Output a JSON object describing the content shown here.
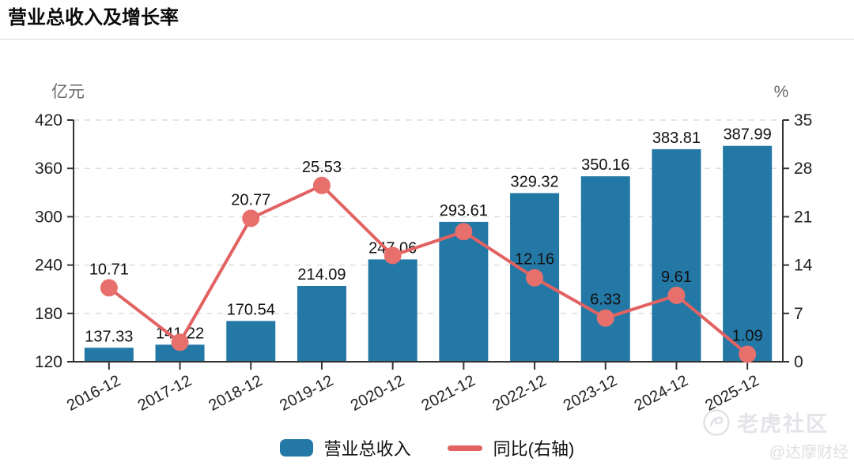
{
  "header": {
    "title": "营业总收入及增长率"
  },
  "chart_data": {
    "type": "bar",
    "title": "营业总收入及增长率",
    "categories": [
      "2016-12",
      "2017-12",
      "2018-12",
      "2019-12",
      "2020-12",
      "2021-12",
      "2022-12",
      "2023-12",
      "2024-12",
      "2025-12"
    ],
    "series": [
      {
        "name": "营业总收入",
        "type": "bar",
        "axis": "left",
        "unit": "亿元",
        "color": "#2478a6",
        "values": [
          137.33,
          141.22,
          170.54,
          214.09,
          247.06,
          293.61,
          329.32,
          350.16,
          383.81,
          387.99
        ],
        "label_visible": [
          true,
          true,
          true,
          true,
          true,
          true,
          true,
          true,
          true,
          true
        ]
      },
      {
        "name": "同比(右轴)",
        "type": "line",
        "axis": "right",
        "unit": "%",
        "color": "#e26262",
        "dot_color": "#e8706c",
        "values": [
          10.71,
          2.83,
          20.77,
          25.53,
          15.4,
          18.84,
          12.16,
          6.33,
          9.61,
          1.09
        ],
        "label_visible": [
          true,
          false,
          true,
          true,
          false,
          false,
          true,
          true,
          true,
          true
        ]
      }
    ],
    "left_axis": {
      "unit": "亿元",
      "min": 120,
      "max": 420,
      "ticks": [
        420,
        360,
        300,
        240,
        180,
        120
      ]
    },
    "right_axis": {
      "unit": "%",
      "min": 0,
      "max": 35,
      "ticks": [
        35,
        28,
        21,
        14,
        7,
        0
      ]
    },
    "grid": true,
    "legend_position": "bottom",
    "x_label_rotation_deg": -28
  },
  "legend": {
    "items": [
      {
        "label": "营业总收入",
        "color": "#2478a6",
        "type": "bar"
      },
      {
        "label": "同比(右轴)",
        "color": "#e26262",
        "type": "line"
      }
    ]
  },
  "watermark": {
    "community": "老虎社区",
    "account": "@达摩财经"
  }
}
